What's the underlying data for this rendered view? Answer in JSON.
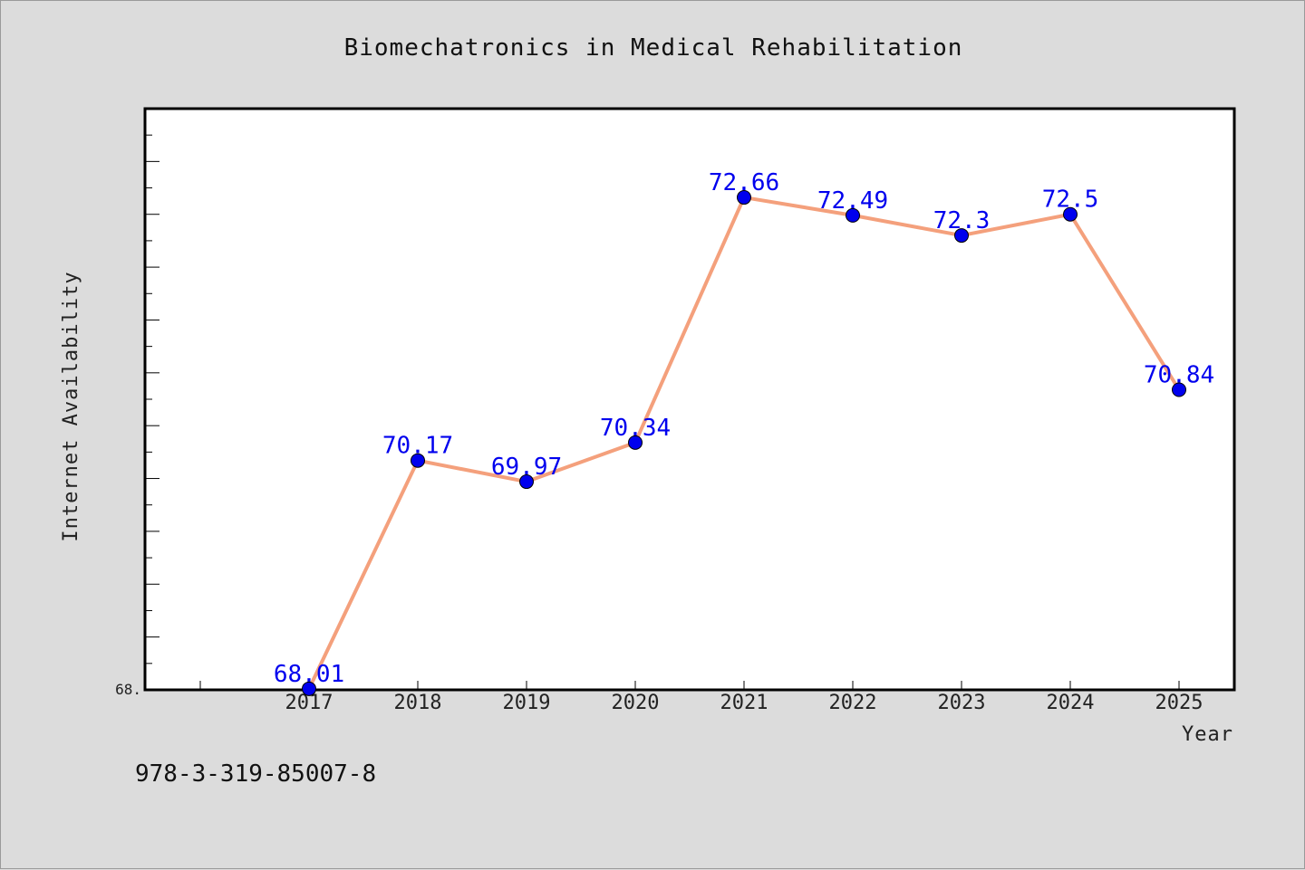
{
  "chart_data": {
    "type": "line",
    "title": "Biomechatronics in Medical Rehabilitation",
    "xlabel": "Year",
    "ylabel": "Internet Availability",
    "categories": [
      "2017",
      "2018",
      "2019",
      "2020",
      "2021",
      "2022",
      "2023",
      "2024",
      "2025"
    ],
    "series": [
      {
        "values": [
          68.01,
          70.17,
          69.97,
          70.34,
          72.66,
          72.49,
          72.3,
          72.5,
          70.84
        ],
        "data_labels": [
          "68.01",
          "70.17",
          "69.97",
          "70.34",
          "72.66",
          "72.49",
          "72.3",
          "72.5",
          "70.84"
        ],
        "line_color": "#f4a07c",
        "marker_color": "#0000ee"
      }
    ],
    "ylim": [
      68.0,
      73.5
    ],
    "y_tick_labels": [
      "68."
    ],
    "grid": false,
    "legend": "none",
    "colors": {
      "background": "#dcdcdc",
      "plot_area": "#ffffff",
      "line": "#f4a07c",
      "marker": "#0000ee",
      "data_label": "#0000ee"
    }
  },
  "footer": {
    "isbn": "978-3-319-85007-8"
  }
}
